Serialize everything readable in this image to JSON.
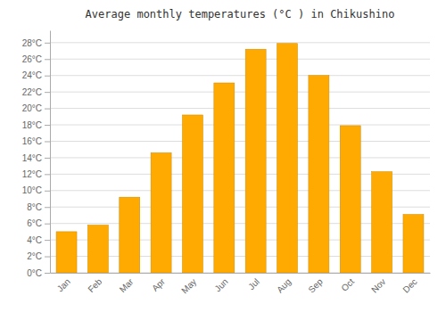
{
  "chart_data": {
    "type": "bar",
    "title": "Average monthly temperatures (°C ) in Chikushino",
    "categories": [
      "Jan",
      "Feb",
      "Mar",
      "Apr",
      "May",
      "Jun",
      "Jul",
      "Aug",
      "Sep",
      "Oct",
      "Nov",
      "Dec"
    ],
    "values": [
      5.0,
      5.8,
      9.2,
      14.6,
      19.2,
      23.1,
      27.2,
      27.9,
      24.0,
      17.9,
      12.3,
      7.1
    ],
    "color": "#FFAA00",
    "ylim": [
      0,
      29.5
    ],
    "yticks": [
      {
        "value": 0,
        "label": "0°C"
      },
      {
        "value": 2,
        "label": "2°C"
      },
      {
        "value": 4,
        "label": "4°C"
      },
      {
        "value": 6,
        "label": "6°C"
      },
      {
        "value": 8,
        "label": "8°C"
      },
      {
        "value": 10,
        "label": "10°C"
      },
      {
        "value": 12,
        "label": "12°C"
      },
      {
        "value": 14,
        "label": "14°C"
      },
      {
        "value": 16,
        "label": "16°C"
      },
      {
        "value": 18,
        "label": "18°C"
      },
      {
        "value": 20,
        "label": "20°C"
      },
      {
        "value": 22,
        "label": "22°C"
      },
      {
        "value": 24,
        "label": "24°C"
      },
      {
        "value": 26,
        "label": "26°C"
      },
      {
        "value": 28,
        "label": "28°C"
      }
    ],
    "grid": true
  }
}
